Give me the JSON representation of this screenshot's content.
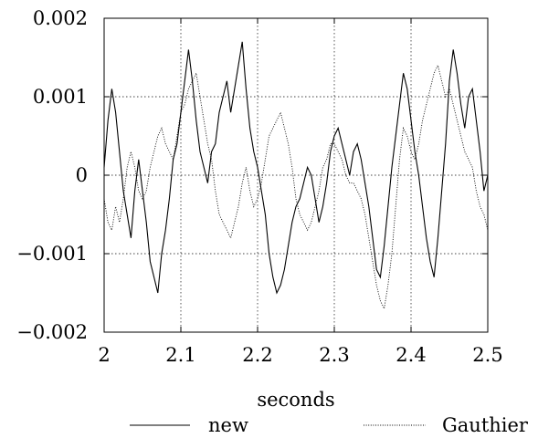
{
  "chart_data": {
    "type": "line",
    "title": "",
    "xlabel": "seconds",
    "ylabel": "",
    "xlim": [
      2.0,
      2.5
    ],
    "ylim": [
      -0.002,
      0.002
    ],
    "grid": true,
    "legend_position": "bottom",
    "x_ticks": [
      {
        "value": 2.0,
        "label": "2"
      },
      {
        "value": 2.1,
        "label": "2.1"
      },
      {
        "value": 2.2,
        "label": "2.2"
      },
      {
        "value": 2.3,
        "label": "2.3"
      },
      {
        "value": 2.4,
        "label": "2.4"
      },
      {
        "value": 2.5,
        "label": "2.5"
      }
    ],
    "y_ticks": [
      {
        "value": 0.002,
        "label": "0.002"
      },
      {
        "value": 0.001,
        "label": "0.001"
      },
      {
        "value": 0.0,
        "label": "0"
      },
      {
        "value": -0.001,
        "label": "−0.001"
      },
      {
        "value": -0.002,
        "label": "−0.002"
      }
    ],
    "series": [
      {
        "name": "new",
        "style": "solid",
        "x": [
          2.0,
          2.005,
          2.01,
          2.015,
          2.02,
          2.025,
          2.03,
          2.035,
          2.04,
          2.045,
          2.05,
          2.055,
          2.06,
          2.065,
          2.07,
          2.075,
          2.08,
          2.085,
          2.09,
          2.095,
          2.1,
          2.105,
          2.11,
          2.115,
          2.12,
          2.125,
          2.13,
          2.135,
          2.14,
          2.145,
          2.15,
          2.155,
          2.16,
          2.165,
          2.17,
          2.175,
          2.18,
          2.185,
          2.19,
          2.195,
          2.2,
          2.205,
          2.21,
          2.215,
          2.22,
          2.225,
          2.23,
          2.235,
          2.24,
          2.245,
          2.25,
          2.255,
          2.26,
          2.265,
          2.27,
          2.275,
          2.28,
          2.285,
          2.29,
          2.295,
          2.3,
          2.305,
          2.31,
          2.315,
          2.32,
          2.325,
          2.33,
          2.335,
          2.34,
          2.345,
          2.35,
          2.355,
          2.36,
          2.365,
          2.37,
          2.375,
          2.38,
          2.385,
          2.39,
          2.395,
          2.4,
          2.405,
          2.41,
          2.415,
          2.42,
          2.425,
          2.43,
          2.435,
          2.44,
          2.445,
          2.45,
          2.455,
          2.46,
          2.465,
          2.47,
          2.475,
          2.48,
          2.485,
          2.49,
          2.495,
          2.5
        ],
        "y": [
          0.0001,
          0.0007,
          0.0011,
          0.0008,
          0.0003,
          -0.0002,
          -0.0005,
          -0.0008,
          -0.0002,
          0.0002,
          -0.0002,
          -0.0006,
          -0.0011,
          -0.0013,
          -0.0015,
          -0.001,
          -0.0007,
          -0.0003,
          0.0002,
          0.0004,
          0.0008,
          0.0012,
          0.0016,
          0.0012,
          0.0007,
          0.0003,
          0.0001,
          -0.0001,
          0.0003,
          0.0004,
          0.0008,
          0.001,
          0.0012,
          0.0008,
          0.0011,
          0.0014,
          0.0017,
          0.0011,
          0.0006,
          0.0003,
          0.0001,
          -0.0002,
          -0.0005,
          -0.001,
          -0.0013,
          -0.0015,
          -0.0014,
          -0.0012,
          -0.0009,
          -0.0006,
          -0.0004,
          -0.0003,
          -0.0001,
          0.0001,
          0.0,
          -0.0003,
          -0.0006,
          -0.0004,
          -0.0001,
          0.0003,
          0.0005,
          0.0006,
          0.0004,
          0.0002,
          0.0,
          0.0003,
          0.0004,
          0.0002,
          -0.0001,
          -0.0004,
          -0.0008,
          -0.0012,
          -0.0013,
          -0.0009,
          -0.0004,
          0.0001,
          0.0005,
          0.0009,
          0.0013,
          0.0011,
          0.0007,
          0.0003,
          0.0,
          -0.0004,
          -0.0008,
          -0.0011,
          -0.0013,
          -0.0008,
          -0.0002,
          0.0004,
          0.0012,
          0.0016,
          0.0013,
          0.0009,
          0.0006,
          0.001,
          0.0011,
          0.0007,
          0.0003,
          -0.0002,
          0.0
        ]
      },
      {
        "name": "Gauthier",
        "style": "dotted",
        "x": [
          2.0,
          2.005,
          2.01,
          2.015,
          2.02,
          2.025,
          2.03,
          2.035,
          2.04,
          2.045,
          2.05,
          2.055,
          2.06,
          2.065,
          2.07,
          2.075,
          2.08,
          2.085,
          2.09,
          2.095,
          2.1,
          2.105,
          2.11,
          2.115,
          2.12,
          2.125,
          2.13,
          2.135,
          2.14,
          2.145,
          2.15,
          2.155,
          2.16,
          2.165,
          2.17,
          2.175,
          2.18,
          2.185,
          2.19,
          2.195,
          2.2,
          2.205,
          2.21,
          2.215,
          2.22,
          2.225,
          2.23,
          2.235,
          2.24,
          2.245,
          2.25,
          2.255,
          2.26,
          2.265,
          2.27,
          2.275,
          2.28,
          2.285,
          2.29,
          2.295,
          2.3,
          2.305,
          2.31,
          2.315,
          2.32,
          2.325,
          2.33,
          2.335,
          2.34,
          2.345,
          2.35,
          2.355,
          2.36,
          2.365,
          2.37,
          2.375,
          2.38,
          2.385,
          2.39,
          2.395,
          2.4,
          2.405,
          2.41,
          2.415,
          2.42,
          2.425,
          2.43,
          2.435,
          2.44,
          2.445,
          2.45,
          2.455,
          2.46,
          2.465,
          2.47,
          2.475,
          2.48,
          2.485,
          2.49,
          2.495,
          2.5
        ],
        "y": [
          -0.0003,
          -0.0006,
          -0.0007,
          -0.0004,
          -0.0006,
          -0.0003,
          0.0001,
          0.0003,
          0.0001,
          -0.0002,
          -0.0003,
          -0.0002,
          0.0001,
          0.0003,
          0.0005,
          0.0006,
          0.0004,
          0.0003,
          0.0002,
          0.0005,
          0.0008,
          0.0009,
          0.0011,
          0.0012,
          0.0013,
          0.001,
          0.0007,
          0.0004,
          0.0002,
          -0.0002,
          -0.0005,
          -0.0006,
          -0.0007,
          -0.0008,
          -0.0006,
          -0.0004,
          -0.0001,
          0.0001,
          -0.0002,
          -0.0004,
          -0.0003,
          -0.0001,
          0.0002,
          0.0005,
          0.0006,
          0.0007,
          0.0008,
          0.0006,
          0.0004,
          0.0001,
          -0.0003,
          -0.0005,
          -0.0006,
          -0.0007,
          -0.0006,
          -0.0004,
          -0.0002,
          0.0001,
          0.0002,
          0.0004,
          0.0004,
          0.0003,
          0.0002,
          0.0,
          -0.0001,
          -0.0001,
          -0.0002,
          -0.0003,
          -0.0005,
          -0.0008,
          -0.0011,
          -0.0014,
          -0.0016,
          -0.0017,
          -0.0014,
          -0.001,
          -0.0004,
          0.0002,
          0.0006,
          0.0005,
          0.0003,
          0.0002,
          0.0004,
          0.0007,
          0.0009,
          0.0011,
          0.0013,
          0.0014,
          0.0012,
          0.001,
          0.0011,
          0.0009,
          0.0007,
          0.0005,
          0.0003,
          0.0002,
          0.0001,
          -0.0002,
          -0.0004,
          -0.0005,
          -0.0007
        ]
      }
    ]
  }
}
